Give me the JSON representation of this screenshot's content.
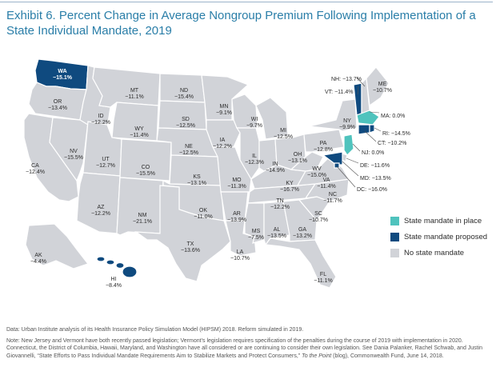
{
  "title": "Exhibit 6. Percent Change in Average Nongroup Premium Following Implementation of a State Individual Mandate, 2019",
  "colors": {
    "state_mandate_in_place": "#4fc3bd",
    "state_mandate_proposed": "#0f4a7f",
    "no_state_mandate": "#d1d3d8",
    "title": "#2a7ea8"
  },
  "legend": {
    "in_place": "State mandate in place",
    "proposed": "State mandate proposed",
    "none": "No state mandate"
  },
  "states": {
    "WA": {
      "abbr": "WA",
      "value": "−15.1%",
      "status": "proposed"
    },
    "OR": {
      "abbr": "OR",
      "value": "−13.4%",
      "status": "none"
    },
    "CA": {
      "abbr": "CA",
      "value": "−12.4%",
      "status": "none"
    },
    "NV": {
      "abbr": "NV",
      "value": "−15.5%",
      "status": "none"
    },
    "ID": {
      "abbr": "ID",
      "value": "−12.2%",
      "status": "none"
    },
    "MT": {
      "abbr": "MT",
      "value": "−11.1%",
      "status": "none"
    },
    "WY": {
      "abbr": "WY",
      "value": "−11.4%",
      "status": "none"
    },
    "UT": {
      "abbr": "UT",
      "value": "−12.7%",
      "status": "none"
    },
    "AZ": {
      "abbr": "AZ",
      "value": "−12.2%",
      "status": "none"
    },
    "CO": {
      "abbr": "CO",
      "value": "−15.5%",
      "status": "none"
    },
    "NM": {
      "abbr": "NM",
      "value": "−21.1%",
      "status": "none"
    },
    "ND": {
      "abbr": "ND",
      "value": "−15.4%",
      "status": "none"
    },
    "SD": {
      "abbr": "SD",
      "value": "−12.5%",
      "status": "none"
    },
    "NE": {
      "abbr": "NE",
      "value": "−12.5%",
      "status": "none"
    },
    "KS": {
      "abbr": "KS",
      "value": "−13.1%",
      "status": "none"
    },
    "OK": {
      "abbr": "OK",
      "value": "−11.0%",
      "status": "none"
    },
    "TX": {
      "abbr": "TX",
      "value": "−13.6%",
      "status": "none"
    },
    "MN": {
      "abbr": "MN",
      "value": "−9.1%",
      "status": "none"
    },
    "IA": {
      "abbr": "IA",
      "value": "−12.2%",
      "status": "none"
    },
    "MO": {
      "abbr": "MO",
      "value": "−11.3%",
      "status": "none"
    },
    "AR": {
      "abbr": "AR",
      "value": "−13.9%",
      "status": "none"
    },
    "LA": {
      "abbr": "LA",
      "value": "−10.7%",
      "status": "none"
    },
    "WI": {
      "abbr": "WI",
      "value": "−9.7%",
      "status": "none"
    },
    "IL": {
      "abbr": "IL",
      "value": "−12.3%",
      "status": "none"
    },
    "MI": {
      "abbr": "MI",
      "value": "−12.5%",
      "status": "none"
    },
    "IN": {
      "abbr": "IN",
      "value": "−14.9%",
      "status": "none"
    },
    "OH": {
      "abbr": "OH",
      "value": "−13.1%",
      "status": "none"
    },
    "KY": {
      "abbr": "KY",
      "value": "−16.7%",
      "status": "none"
    },
    "TN": {
      "abbr": "TN",
      "value": "−12.2%",
      "status": "none"
    },
    "MS": {
      "abbr": "MS",
      "value": "−7.5%",
      "status": "none"
    },
    "AL": {
      "abbr": "AL",
      "value": "−13.5%",
      "status": "none"
    },
    "GA": {
      "abbr": "GA",
      "value": "−13.2%",
      "status": "none"
    },
    "FL": {
      "abbr": "FL",
      "value": "−11.1%",
      "status": "none"
    },
    "SC": {
      "abbr": "SC",
      "value": "−10.7%",
      "status": "none"
    },
    "NC": {
      "abbr": "NC",
      "value": "−11.7%",
      "status": "none"
    },
    "VA": {
      "abbr": "VA",
      "value": "−11.4%",
      "status": "none"
    },
    "WV": {
      "abbr": "WV",
      "value": "−15.0%",
      "status": "none"
    },
    "PA": {
      "abbr": "PA",
      "value": "−12.8%",
      "status": "none"
    },
    "NY": {
      "abbr": "NY",
      "value": "−9.9%",
      "status": "none"
    },
    "VT": {
      "abbr": "VT",
      "value": "−11.4%",
      "status": "proposed"
    },
    "NH": {
      "abbr": "NH",
      "value": "−13.7%",
      "status": "none"
    },
    "ME": {
      "abbr": "ME",
      "value": "−10.7%",
      "status": "none"
    },
    "MA": {
      "abbr": "MA",
      "value": "0.0%",
      "status": "in_place"
    },
    "RI": {
      "abbr": "RI",
      "value": "−14.5%",
      "status": "proposed"
    },
    "CT": {
      "abbr": "CT",
      "value": "−10.2%",
      "status": "proposed"
    },
    "NJ": {
      "abbr": "NJ",
      "value": "0.0%",
      "status": "in_place"
    },
    "DE": {
      "abbr": "DE",
      "value": "−11.6%",
      "status": "none"
    },
    "MD": {
      "abbr": "MD",
      "value": "−13.5%",
      "status": "proposed"
    },
    "DC": {
      "abbr": "DC",
      "value": "−16.0%",
      "status": "proposed"
    },
    "AK": {
      "abbr": "AK",
      "value": "−4.4%",
      "status": "none"
    },
    "HI": {
      "abbr": "HI",
      "value": "−8.4%",
      "status": "proposed"
    }
  },
  "notes": {
    "source": "Data: Urban Institute analysis of its Health Insurance Policy Simulation Model (HIPSM) 2018. Reform simulated in 2019.",
    "note": "Note: New Jersey and Vermont have both recently passed legislation; Vermont’s legislation requires specification of the penalties during the course of 2019 with implementation in 2020. Connecticut, the District of Columbia, Hawaii, Maryland, and Washington have all considered or are continuing to consider their own legislation. See Dania Palanker, Rachel Schwab, and Justin Giovannelli, “State Efforts to Pass Individual Mandate Requirements Aim to Stabilize Markets and Protect Consumers,”",
    "citation_italic": "To the Point",
    "citation_rest": " (blog), Commonwealth Fund, June 14, 2018."
  }
}
